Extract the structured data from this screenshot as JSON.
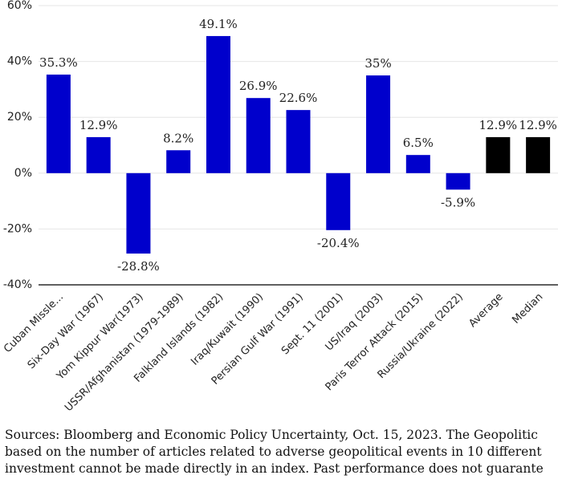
{
  "chart_data": {
    "type": "bar",
    "categories": [
      "Cuban Missle...",
      "Six-Day War (1967)",
      "Yom Kippur War(1973)",
      "USSR/Afghanistan (1979-1989)",
      "Falkland Islands (1982)",
      "Iraq/Kuwait (1990)",
      "Persian Gulf War (1991)",
      "Sept. 11 (2001)",
      "US/Iraq (2003)",
      "Paris Terror Attack (2015)",
      "Russia/Ukraine (2022)",
      "Average",
      "Median"
    ],
    "values": [
      35.3,
      12.9,
      -28.8,
      8.2,
      49.1,
      26.9,
      22.6,
      -20.4,
      35,
      6.5,
      -5.9,
      12.9,
      12.9
    ],
    "value_labels": [
      "35.3%",
      "12.9%",
      "-28.8%",
      "8.2%",
      "49.1%",
      "26.9%",
      "22.6%",
      "-20.4%",
      "35%",
      "6.5%",
      "-5.9%",
      "12.9%",
      "12.9%"
    ],
    "colors": [
      "#0000cc",
      "#0000cc",
      "#0000cc",
      "#0000cc",
      "#0000cc",
      "#0000cc",
      "#0000cc",
      "#0000cc",
      "#0000cc",
      "#0000cc",
      "#0000cc",
      "#000000",
      "#000000"
    ],
    "ylim": [
      -40,
      60
    ],
    "yticks": [
      {
        "value": -40,
        "label": "-40%"
      },
      {
        "value": -20,
        "label": "-20%"
      },
      {
        "value": 0,
        "label": "0%"
      },
      {
        "value": 20,
        "label": "20%"
      },
      {
        "value": 40,
        "label": "40%"
      },
      {
        "value": 60,
        "label": "60%"
      }
    ],
    "grid": true,
    "source_note": [
      "Sources: Bloomberg and Economic Policy Uncertainty, Oct. 15, 2023. The Geopolitic",
      "based on the number of articles related to adverse geopolitical events in 10 different",
      "investment cannot be made directly in an index. Past performance does not guarante"
    ]
  }
}
